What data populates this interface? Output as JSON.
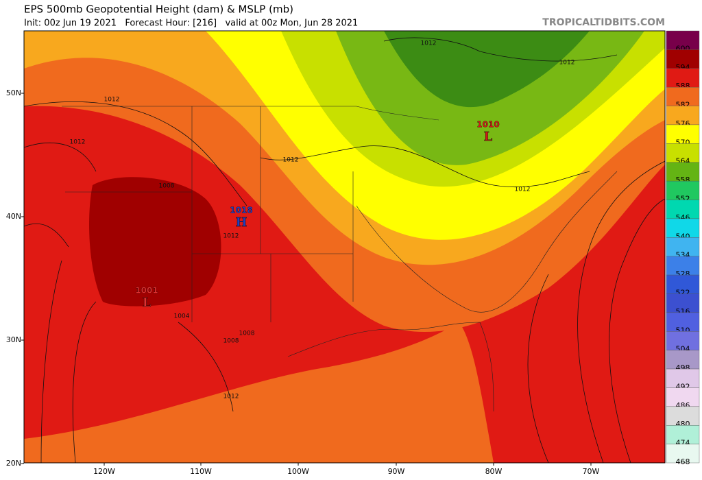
{
  "header": {
    "title": "EPS 500mb Geopotential Height (dam) & MSLP (mb)",
    "subtitle": "Init: 00z Jun 19 2021   Forecast Hour: [216]   valid at 00z Mon, Jun 28 2021",
    "watermark": "TROPICALTIDBITS.COM"
  },
  "map": {
    "lat_labels": [
      "50N",
      "40N",
      "30N",
      "20N"
    ],
    "lon_labels": [
      "120W",
      "110W",
      "100W",
      "90W",
      "80W",
      "70W"
    ],
    "pressure_centers": [
      {
        "label": "L",
        "value": 1010,
        "color": "#d01818"
      },
      {
        "label": "H",
        "value": 1018,
        "color": "#2040c0"
      },
      {
        "label": "L",
        "value": 1001,
        "color": "#e03030"
      }
    ],
    "isobar_labels": [
      1012,
      1012,
      1012,
      1012,
      1012,
      1012,
      1012,
      1012,
      1008,
      1008,
      1008,
      1004
    ]
  },
  "colorbar": {
    "levels": [
      600,
      594,
      588,
      582,
      576,
      570,
      564,
      558,
      552,
      546,
      540,
      534,
      528,
      522,
      516,
      510,
      504,
      498,
      492,
      486,
      480,
      474,
      468
    ],
    "colors": [
      "#78004a",
      "#a00000",
      "#e01a14",
      "#f06a1e",
      "#f8a81e",
      "#ffff00",
      "#c8e000",
      "#64b414",
      "#20c860",
      "#00d8b0",
      "#10d8e8",
      "#40b4f0",
      "#3c80e8",
      "#3058d8",
      "#3c50d0",
      "#5060e0",
      "#7070e0",
      "#a898c8",
      "#e0c8e8",
      "#f0d8f0",
      "#dcdcdc",
      "#b0f0d8",
      "#e8f8f0"
    ]
  }
}
